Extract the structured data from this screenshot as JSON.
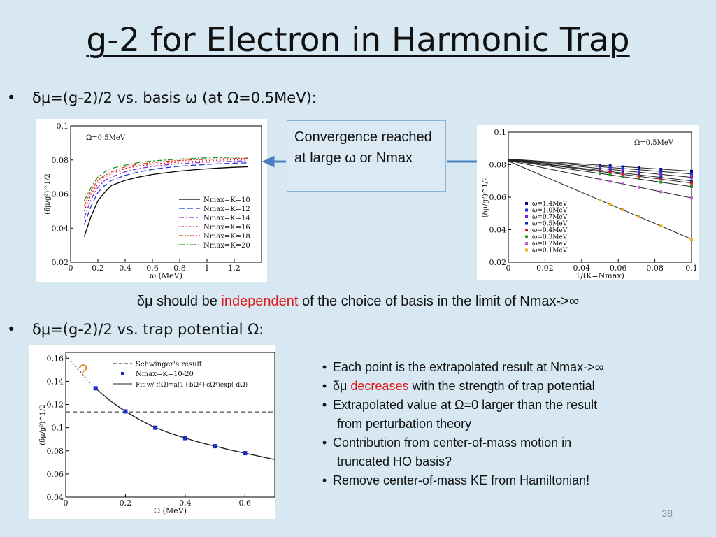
{
  "title": "g-2 for Electron in Harmonic Trap",
  "bullets": [
    {
      "dot": "•",
      "text": "δμ=(g-2)/2 vs. basis ω (at Ω=0.5MeV):"
    },
    {
      "dot": "•",
      "text": "δμ=(g-2)/2 vs. trap potential Ω:"
    }
  ],
  "callout": "Convergence reached at large ω or Nmax",
  "middle_line": {
    "before": "δμ should be ",
    "highlight": "independent",
    "after": " of the choice of basis in the limit of Nmax->∞"
  },
  "notes": [
    {
      "parts": [
        {
          "text": "Each point is the extrapolated result at Nmax->∞",
          "red": false
        }
      ]
    },
    {
      "parts": [
        {
          "text": "δμ ",
          "red": false
        },
        {
          "text": "decreases",
          "red": true
        },
        {
          "text": " with the strength  of trap potential",
          "red": false
        }
      ]
    },
    {
      "parts": [
        {
          "text": "Extrapolated value at Ω=0 larger than the result",
          "red": false
        }
      ],
      "cont": "from perturbation theory"
    },
    {
      "parts": [
        {
          "text": "Contribution from center-of-mass motion in",
          "red": false
        }
      ],
      "cont": "truncated HO basis?"
    },
    {
      "parts": [
        {
          "text": "Remove center-of-mass KE from Hamiltonian!",
          "red": false
        }
      ]
    }
  ],
  "page_number": "38",
  "colors": {
    "background": "#d7e8f2",
    "highlight": "#e01818",
    "callout_border": "#8ab1d8",
    "arrow": "#4a7fc1",
    "question": "#e08a2c"
  },
  "chart_data": [
    {
      "type": "line",
      "annotation": "Ω=0.5MeV",
      "xlabel": "ω (MeV)",
      "ylabel": "(δμ/g²)^1/2",
      "xlim": [
        0,
        1.4
      ],
      "ylim": [
        0.02,
        0.1
      ],
      "xticks": [
        "0",
        "0.2",
        "0.4",
        "0.6",
        "0.8",
        "1",
        "1.2"
      ],
      "yticks": [
        "0.02",
        "0.04",
        "0.06",
        "0.08",
        "0.1"
      ],
      "legend_position": "bottom-right",
      "series": [
        {
          "name": "Nmax=K=10",
          "color": "#000000",
          "dash": "",
          "x": [
            0.1,
            0.15,
            0.2,
            0.25,
            0.3,
            0.4,
            0.5,
            0.6,
            0.7,
            0.8,
            0.9,
            1.0,
            1.1,
            1.2,
            1.3
          ],
          "values": [
            0.035,
            0.047,
            0.056,
            0.061,
            0.065,
            0.068,
            0.07,
            0.0715,
            0.0725,
            0.0735,
            0.0742,
            0.0748,
            0.0753,
            0.0757,
            0.076
          ]
        },
        {
          "name": "Nmax=K=12",
          "color": "#1d3ccf",
          "dash": "8,4",
          "x": [
            0.1,
            0.15,
            0.2,
            0.25,
            0.3,
            0.4,
            0.5,
            0.6,
            0.7,
            0.8,
            0.9,
            1.0,
            1.1,
            1.2,
            1.3
          ],
          "values": [
            0.042,
            0.053,
            0.061,
            0.065,
            0.068,
            0.071,
            0.073,
            0.0745,
            0.0755,
            0.0763,
            0.0769,
            0.0774,
            0.0778,
            0.0781,
            0.0783
          ]
        },
        {
          "name": "Nmax=K=14",
          "color": "#8a2ad0",
          "dash": "7,3,2,3",
          "x": [
            0.1,
            0.15,
            0.2,
            0.25,
            0.3,
            0.4,
            0.5,
            0.6,
            0.7,
            0.8,
            0.9,
            1.0,
            1.1,
            1.2,
            1.3
          ],
          "values": [
            0.046,
            0.057,
            0.064,
            0.068,
            0.07,
            0.073,
            0.075,
            0.0762,
            0.0771,
            0.0778,
            0.0783,
            0.0787,
            0.079,
            0.0793,
            0.0795
          ]
        },
        {
          "name": "Nmax=K=16",
          "color": "#d01818",
          "dash": "2,3",
          "x": [
            0.1,
            0.15,
            0.2,
            0.25,
            0.3,
            0.4,
            0.5,
            0.6,
            0.7,
            0.8,
            0.9,
            1.0,
            1.1,
            1.2,
            1.3
          ],
          "values": [
            0.05,
            0.06,
            0.066,
            0.07,
            0.072,
            0.075,
            0.0765,
            0.0775,
            0.0782,
            0.0788,
            0.0792,
            0.0796,
            0.0799,
            0.0801,
            0.0803
          ]
        },
        {
          "name": "Nmax=K=18",
          "color": "#e03820",
          "dash": "6,2,2,2,2,2",
          "x": [
            0.1,
            0.15,
            0.2,
            0.25,
            0.3,
            0.4,
            0.5,
            0.6,
            0.7,
            0.8,
            0.9,
            1.0,
            1.1,
            1.2,
            1.3
          ],
          "values": [
            0.053,
            0.062,
            0.068,
            0.071,
            0.073,
            0.076,
            0.0775,
            0.0785,
            0.0792,
            0.0797,
            0.0801,
            0.0804,
            0.0806,
            0.0808,
            0.081
          ]
        },
        {
          "name": "Nmax=K=20",
          "color": "#1f9a2a",
          "dash": "8,3,2,3",
          "x": [
            0.1,
            0.15,
            0.2,
            0.25,
            0.3,
            0.4,
            0.5,
            0.6,
            0.7,
            0.8,
            0.9,
            1.0,
            1.1,
            1.2,
            1.3
          ],
          "values": [
            0.056,
            0.064,
            0.07,
            0.073,
            0.075,
            0.077,
            0.0785,
            0.0794,
            0.08,
            0.0805,
            0.0809,
            0.0812,
            0.0814,
            0.0816,
            0.0817
          ]
        }
      ]
    },
    {
      "type": "scatter",
      "annotation": "Ω=0.5MeV",
      "xlabel": "1/(K=Nmax)",
      "ylabel": "(δμ/g²)^1/2",
      "xlim": [
        0,
        0.1
      ],
      "ylim": [
        0.02,
        0.1
      ],
      "xticks": [
        "0",
        "0.02",
        "0.04",
        "0.06",
        "0.08",
        "0.1"
      ],
      "yticks": [
        "0.02",
        "0.04",
        "0.06",
        "0.08",
        "0.1"
      ],
      "legend_position": "bottom-left",
      "fit": "linear extrapolation to 1/(K=Nmax)=0",
      "x": [
        0.05,
        0.0556,
        0.0625,
        0.0714,
        0.0833,
        0.1
      ],
      "series": [
        {
          "name": "ω=1.4MeV",
          "color": "#0a0a7a",
          "intercept": 0.0835,
          "values": [
            0.0797,
            0.0793,
            0.0787,
            0.0781,
            0.0772,
            0.076
          ]
        },
        {
          "name": "ω=1.0MeV",
          "color": "#2030d0",
          "intercept": 0.0833,
          "values": [
            0.0788,
            0.0783,
            0.0777,
            0.0769,
            0.0758,
            0.0743
          ]
        },
        {
          "name": "ω=0.7MeV",
          "color": "#8020c0",
          "intercept": 0.0832,
          "values": [
            0.0777,
            0.077,
            0.0763,
            0.0754,
            0.0741,
            0.0722
          ]
        },
        {
          "name": "ω=0.5MeV",
          "color": "#1a2aa0",
          "intercept": 0.083,
          "values": [
            0.0765,
            0.0758,
            0.0749,
            0.0738,
            0.0722,
            0.07
          ]
        },
        {
          "name": "ω=0.4MeV",
          "color": "#e01818",
          "intercept": 0.0829,
          "values": [
            0.0758,
            0.075,
            0.074,
            0.0728,
            0.0711,
            0.0687
          ]
        },
        {
          "name": "ω=0.3MeV",
          "color": "#1f9a2a",
          "intercept": 0.0827,
          "values": [
            0.0746,
            0.0737,
            0.0726,
            0.0712,
            0.0692,
            0.0665
          ]
        },
        {
          "name": "ω=0.2MeV",
          "color": "#c060d0",
          "intercept": 0.0825,
          "values": [
            0.071,
            0.0697,
            0.0681,
            0.0661,
            0.0633,
            0.0595
          ]
        },
        {
          "name": "ω=0.1MeV",
          "color": "#f0b020",
          "intercept": 0.0822,
          "values": [
            0.0582,
            0.0555,
            0.0523,
            0.048,
            0.0423,
            0.0342
          ]
        }
      ]
    },
    {
      "type": "scatter",
      "xlabel": "Ω (MeV)",
      "ylabel": "(δμ/g²)^1/2",
      "xlim": [
        0,
        0.7
      ],
      "ylim": [
        0.04,
        0.165
      ],
      "xticks": [
        "0",
        "0.2",
        "0.4",
        "0.6"
      ],
      "yticks": [
        "0.04",
        "0.06",
        "0.08",
        "0.1",
        "0.12",
        "0.14",
        "0.16"
      ],
      "legend_position": "top-right",
      "annotation": "?",
      "schwinger": {
        "name": "Schwinger's result",
        "value": 0.1136
      },
      "points": {
        "name": "Nmax=K=10-20",
        "x": [
          0.1,
          0.2,
          0.3,
          0.4,
          0.5,
          0.6
        ],
        "values": [
          0.134,
          0.114,
          0.1,
          0.091,
          0.084,
          0.078
        ]
      },
      "fit": {
        "name": "Fit w/ f(Ω)=a(1+bΩ²+cΩ⁴)exp(-dΩ)",
        "x": [
          0,
          0.025,
          0.05,
          0.075,
          0.1,
          0.15,
          0.2,
          0.25,
          0.3,
          0.35,
          0.4,
          0.45,
          0.5,
          0.55,
          0.6,
          0.65,
          0.7
        ],
        "values": [
          0.162,
          0.155,
          0.148,
          0.1405,
          0.134,
          0.123,
          0.114,
          0.1065,
          0.1,
          0.0952,
          0.091,
          0.0872,
          0.084,
          0.0808,
          0.078,
          0.0752,
          0.0725
        ]
      }
    }
  ]
}
